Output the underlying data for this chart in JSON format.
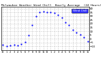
{
  "title": "Milwaukee Weather Wind Chill  Hourly Average  (24 Hours)",
  "title_fontsize": 3.2,
  "background_color": "#ffffff",
  "plot_bg_color": "#ffffff",
  "line_color": "#0000ff",
  "marker_size": 1.2,
  "grid_color": "#999999",
  "grid_linestyle": ":",
  "ylim": [
    -15,
    42
  ],
  "xlim": [
    -0.5,
    23.5
  ],
  "yticks": [
    -10,
    -5,
    0,
    5,
    10,
    15,
    20,
    25,
    30,
    35,
    40
  ],
  "ytick_fontsize": 2.8,
  "xtick_fontsize": 2.5,
  "xtick_labels": [
    "12",
    "1",
    "2",
    "3",
    "4",
    "5",
    "6",
    "7",
    "8",
    "9",
    "10",
    "11",
    "12",
    "1",
    "2",
    "3",
    "4",
    "5",
    "6",
    "7",
    "8",
    "9",
    "10",
    "11"
  ],
  "hours": [
    0,
    1,
    2,
    3,
    4,
    5,
    6,
    7,
    8,
    9,
    10,
    11,
    12,
    13,
    14,
    15,
    16,
    17,
    18,
    19,
    20,
    21,
    22,
    23
  ],
  "values": [
    -8,
    -10,
    -9,
    -8,
    -9,
    -7,
    -4,
    5,
    18,
    30,
    35,
    36,
    35,
    35,
    34,
    32,
    28,
    22,
    18,
    12,
    8,
    6,
    2,
    -3
  ],
  "legend_color": "#0000ff",
  "legend_label": "Wind Chill",
  "legend_fontsize": 3.0,
  "border_color": "#000000"
}
